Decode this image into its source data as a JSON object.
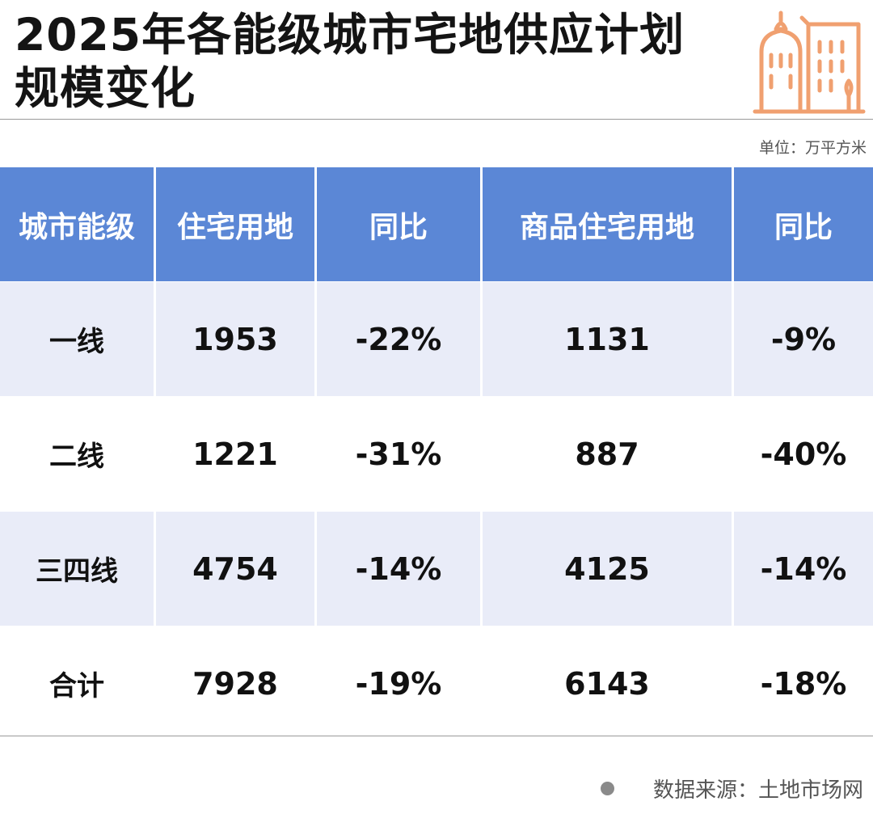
{
  "title": {
    "line1": "2025年各能级城市宅地供应计划",
    "line2": "规模变化"
  },
  "unit": "单位：万平方米",
  "icon": "city-buildings-icon",
  "colors": {
    "header_bg": "#5b87d6",
    "row_shade": "#e9ecf8",
    "icon_orange": "#f0a070"
  },
  "chart_data": {
    "type": "table",
    "columns": [
      "城市能级",
      "住宅用地",
      "同比",
      "商品住宅用地",
      "同比"
    ],
    "rows": [
      [
        "一线",
        "1953",
        "-22%",
        "1131",
        "-9%"
      ],
      [
        "二线",
        "1221",
        "-31%",
        "887",
        "-40%"
      ],
      [
        "三四线",
        "4754",
        "-14%",
        "4125",
        "-14%"
      ],
      [
        "合计",
        "7928",
        "-19%",
        "6143",
        "-18%"
      ]
    ]
  },
  "source": "数据来源：土地市场网"
}
